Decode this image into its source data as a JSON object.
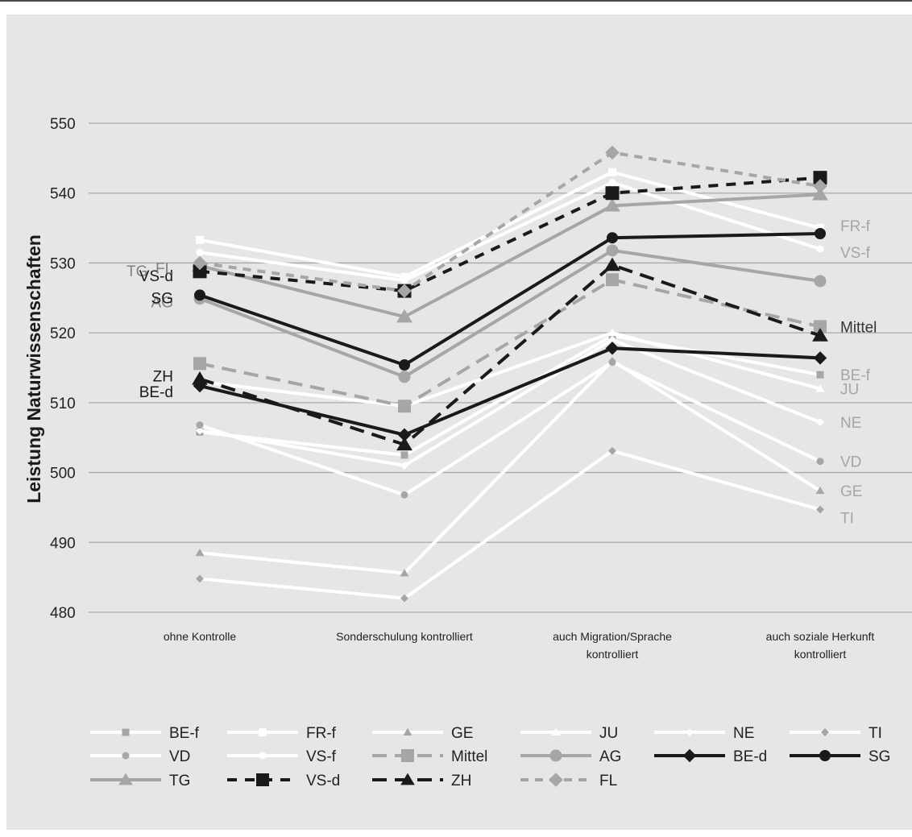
{
  "chart_data": {
    "type": "line",
    "ylabel": "Leistung Naturwissenschaften",
    "xlabel": "",
    "ylim": [
      480,
      550
    ],
    "yticks": [
      480,
      490,
      500,
      510,
      520,
      530,
      540,
      550
    ],
    "grid": true,
    "categories": [
      [
        "ohne Kontrolle"
      ],
      [
        "Sonderschulung kontrolliert"
      ],
      [
        "auch Migration/Sprache",
        "kontrolliert"
      ],
      [
        "auch soziale Herkunft",
        "kontrolliert"
      ]
    ],
    "legend_position": "bottom",
    "series": [
      {
        "name": "BE-f",
        "values": [
          505.8,
          502.5,
          519.6,
          514.0
        ],
        "color": "#ffffff",
        "marker": "square",
        "marker_color": "#a6a6a6",
        "line_width": 4,
        "dash": "",
        "marker_size": 9,
        "end_label": "BE-f",
        "end_label_color": "#a6a6a6",
        "start_label": "",
        "start_label_color": ""
      },
      {
        "name": "FR-f",
        "values": [
          533.3,
          528.0,
          543.0,
          535.0
        ],
        "color": "#ffffff",
        "marker": "square",
        "marker_color": "#ffffff",
        "line_width": 4,
        "dash": "",
        "marker_size": 10,
        "end_label": "FR-f",
        "end_label_color": "#a6a6a6",
        "start_label": "",
        "start_label_color": ""
      },
      {
        "name": "GE",
        "values": [
          488.5,
          485.6,
          516.0,
          497.4
        ],
        "color": "#ffffff",
        "marker": "triangle",
        "marker_color": "#a6a6a6",
        "line_width": 4,
        "dash": "",
        "marker_size": 10,
        "end_label": "GE",
        "end_label_color": "#a6a6a6",
        "start_label": "",
        "start_label_color": ""
      },
      {
        "name": "JU",
        "values": [
          513.0,
          509.5,
          520.0,
          512.0
        ],
        "color": "#ffffff",
        "marker": "triangle",
        "marker_color": "#ffffff",
        "line_width": 4,
        "dash": "",
        "marker_size": 10,
        "end_label": "JU",
        "end_label_color": "#a6a6a6",
        "start_label": "",
        "start_label_color": ""
      },
      {
        "name": "NE",
        "values": [
          506.0,
          501.0,
          519.0,
          507.2
        ],
        "color": "#ffffff",
        "marker": "diamond",
        "marker_color": "#ffffff",
        "line_width": 4,
        "dash": "",
        "marker_size": 9,
        "end_label": "NE",
        "end_label_color": "#a6a6a6",
        "start_label": "",
        "start_label_color": ""
      },
      {
        "name": "TI",
        "values": [
          484.8,
          482.0,
          503.1,
          494.7
        ],
        "color": "#ffffff",
        "marker": "diamond",
        "marker_color": "#a6a6a6",
        "line_width": 4,
        "dash": "",
        "marker_size": 9,
        "end_label": "TI",
        "end_label_color": "#a6a6a6",
        "start_label": "",
        "start_label_color": ""
      },
      {
        "name": "VD",
        "values": [
          506.8,
          496.8,
          515.8,
          501.6
        ],
        "color": "#ffffff",
        "marker": "circle",
        "marker_color": "#a6a6a6",
        "line_width": 4,
        "dash": "",
        "marker_size": 9,
        "end_label": "VD",
        "end_label_color": "#a6a6a6",
        "start_label": "",
        "start_label_color": ""
      },
      {
        "name": "VS-f",
        "values": [
          531.5,
          527.5,
          541.5,
          532.0
        ],
        "color": "#ffffff",
        "marker": "circle",
        "marker_color": "#ffffff",
        "line_width": 4,
        "dash": "",
        "marker_size": 9,
        "end_label": "VS-f",
        "end_label_color": "#a6a6a6",
        "start_label": "",
        "start_label_color": ""
      },
      {
        "name": "Mittel",
        "values": [
          515.6,
          509.5,
          527.6,
          520.9
        ],
        "color": "#a6a6a6",
        "marker": "square",
        "marker_color": "#a6a6a6",
        "line_width": 4,
        "dash": "18,10",
        "marker_size": 16,
        "end_label": "Mittel",
        "end_label_color": "#333333",
        "start_label": "",
        "start_label_color": ""
      },
      {
        "name": "AG",
        "values": [
          524.9,
          513.7,
          531.8,
          527.4
        ],
        "color": "#a6a6a6",
        "marker": "circle",
        "marker_color": "#a6a6a6",
        "line_width": 4,
        "dash": "",
        "marker_size": 15,
        "end_label": "",
        "end_label_color": "",
        "start_label": "AG",
        "start_label_color": "#808080"
      },
      {
        "name": "BE-d",
        "values": [
          512.4,
          505.4,
          517.8,
          516.4
        ],
        "color": "#1a1a1a",
        "marker": "diamond",
        "marker_color": "#1a1a1a",
        "line_width": 4,
        "dash": "",
        "marker_size": 15,
        "end_label": "",
        "end_label_color": "",
        "start_label": "BE-d",
        "start_label_color": "#1a1a1a"
      },
      {
        "name": "SG",
        "values": [
          525.4,
          515.4,
          533.6,
          534.2
        ],
        "color": "#1a1a1a",
        "marker": "circle",
        "marker_color": "#1a1a1a",
        "line_width": 4,
        "dash": "",
        "marker_size": 14,
        "end_label": "",
        "end_label_color": "",
        "start_label": "SG",
        "start_label_color": "#1a1a1a"
      },
      {
        "name": "TG",
        "values": [
          529.6,
          522.3,
          538.2,
          539.8
        ],
        "color": "#a6a6a6",
        "marker": "triangle",
        "marker_color": "#a6a6a6",
        "line_width": 4,
        "dash": "",
        "marker_size": 18,
        "end_label": "",
        "end_label_color": "",
        "start_label": "TG",
        "start_label_color": "#808080"
      },
      {
        "name": "VS-d",
        "values": [
          528.8,
          526.0,
          540.0,
          542.2
        ],
        "color": "#1a1a1a",
        "marker": "square",
        "marker_color": "#1a1a1a",
        "line_width": 4,
        "dash": "12,10",
        "marker_size": 17,
        "end_label": "",
        "end_label_color": "",
        "start_label": "VS-d",
        "start_label_color": "#1a1a1a"
      },
      {
        "name": "ZH",
        "values": [
          513.4,
          504.0,
          529.7,
          519.6
        ],
        "color": "#1a1a1a",
        "marker": "triangle",
        "marker_color": "#1a1a1a",
        "line_width": 4,
        "dash": "18,10",
        "marker_size": 18,
        "end_label": "",
        "end_label_color": "",
        "start_label": "ZH",
        "start_label_color": "#1a1a1a"
      },
      {
        "name": "FL",
        "values": [
          530.0,
          526.0,
          545.8,
          541.0
        ],
        "color": "#a6a6a6",
        "marker": "diamond",
        "marker_color": "#a6a6a6",
        "line_width": 4,
        "dash": "10,8",
        "marker_size": 16,
        "end_label": "",
        "end_label_color": "",
        "start_label": "FL",
        "start_label_color": "#808080"
      }
    ]
  }
}
